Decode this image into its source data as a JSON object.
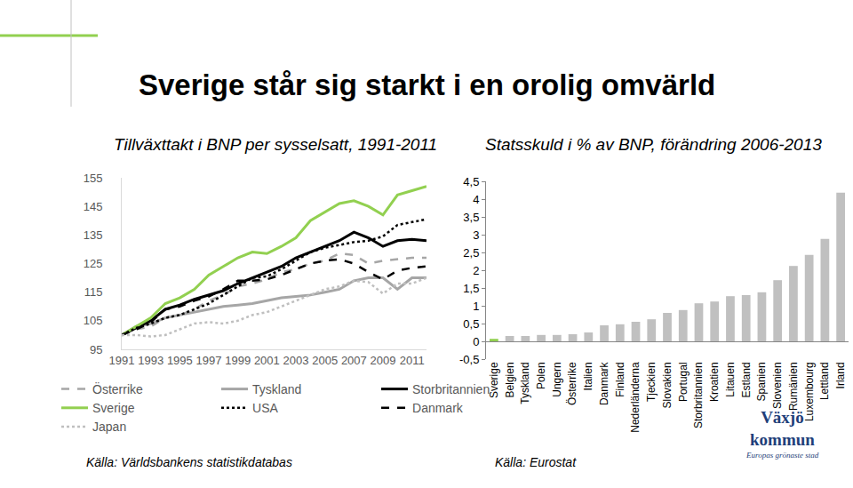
{
  "title": "Sverige står sig starkt i en orolig omvärld",
  "logo": {
    "name": [
      "Växjö",
      "kommun"
    ],
    "tagline": "Europas grönaste stad"
  },
  "chart_data": [
    {
      "type": "line",
      "title": "Tillväxttakt i BNP per sysselsatt, 1991-2011",
      "source": "Källa: Världsbankens statistikdatabas",
      "x": [
        1991,
        1992,
        1993,
        1994,
        1995,
        1996,
        1997,
        1998,
        1999,
        2000,
        2001,
        2002,
        2003,
        2004,
        2005,
        2006,
        2007,
        2008,
        2009,
        2010,
        2011,
        2012
      ],
      "xlim": [
        1991,
        2012
      ],
      "xticks": [
        1991,
        1993,
        1995,
        1997,
        1999,
        2001,
        2003,
        2005,
        2007,
        2009,
        2011
      ],
      "ylim": [
        95,
        155
      ],
      "yticks": [
        95,
        105,
        115,
        125,
        135,
        145,
        155
      ],
      "grid": false,
      "legend": "bottom",
      "series": [
        {
          "name": "Österrike",
          "color": "#a6a6a6",
          "line_style": "dash",
          "values": [
            100,
            102,
            103,
            106,
            107,
            109,
            112,
            114,
            117,
            118,
            119.5,
            122,
            123,
            125,
            126,
            128.5,
            128,
            125,
            126,
            126.5,
            127,
            127
          ]
        },
        {
          "name": "Tyskland",
          "color": "#a6a6a6",
          "line_style": "solid",
          "values": [
            100,
            103,
            104,
            106,
            107,
            108,
            109,
            110,
            110.5,
            111,
            112,
            113,
            113.5,
            114,
            115,
            116,
            119,
            120,
            120,
            116,
            120,
            120
          ]
        },
        {
          "name": "Storbritannien",
          "color": "#000000",
          "line_style": "solid",
          "values": [
            100,
            102.5,
            105,
            109,
            110.5,
            112.5,
            114,
            115.5,
            118,
            120,
            122,
            124,
            127,
            129,
            131,
            133,
            136,
            134,
            131,
            133,
            133.5,
            133
          ]
        },
        {
          "name": "Sverige",
          "color": "#92d050",
          "line_style": "solid",
          "values": [
            100,
            103,
            106,
            111,
            113,
            116,
            121,
            124,
            127,
            129,
            128.5,
            131,
            134,
            140,
            143,
            146,
            147,
            145,
            142,
            149,
            150.5,
            152
          ]
        },
        {
          "name": "USA",
          "color": "#000000",
          "line_style": "dot",
          "values": [
            100,
            102.5,
            104,
            106,
            107,
            109,
            111,
            114,
            117,
            120,
            120.5,
            123,
            126,
            129,
            130.5,
            131.5,
            132.5,
            133,
            134.5,
            138.5,
            139.5,
            140.5
          ]
        },
        {
          "name": "Danmark",
          "color": "#000000",
          "line_style": "dash",
          "values": [
            100,
            102,
            104.5,
            109,
            110,
            112,
            113.5,
            116,
            119,
            119,
            119.5,
            121,
            123,
            125,
            126,
            126.5,
            125,
            122,
            119.5,
            122.5,
            123.5,
            124
          ]
        },
        {
          "name": "Japan",
          "color": "#bfbfbf",
          "line_style": "dot",
          "values": [
            100,
            100,
            99.5,
            100,
            102,
            104,
            104.5,
            104,
            105,
            107,
            108,
            110,
            112,
            114,
            116,
            117,
            119,
            118.5,
            114.5,
            118,
            118,
            120
          ]
        }
      ]
    },
    {
      "type": "bar",
      "title": "Statsskuld i % av BNP, förändring 2006-2013",
      "source": "Källa: Eurostat",
      "categories": [
        "Sverige",
        "Belgien",
        "Tyskland",
        "Polen",
        "Ungern",
        "Österrike",
        "Italien",
        "Danmark",
        "Finland",
        "Nederländerna",
        "Tjeckien",
        "Slovakien",
        "Portugal",
        "Storbritannien",
        "Kroatien",
        "Litauen",
        "Estland",
        "Spanien",
        "Slovenien",
        "Rumänien",
        "Luxembourg",
        "Lettland",
        "Irland"
      ],
      "values": [
        0.07,
        0.15,
        0.15,
        0.18,
        0.18,
        0.2,
        0.25,
        0.45,
        0.48,
        0.55,
        0.62,
        0.8,
        0.88,
        1.07,
        1.12,
        1.27,
        1.3,
        1.38,
        1.72,
        2.12,
        2.43,
        2.88,
        4.18
      ],
      "colors": [
        "#92d050",
        "#c0c0c0",
        "#c0c0c0",
        "#c0c0c0",
        "#c0c0c0",
        "#c0c0c0",
        "#c0c0c0",
        "#c0c0c0",
        "#c0c0c0",
        "#c0c0c0",
        "#c0c0c0",
        "#c0c0c0",
        "#c0c0c0",
        "#c0c0c0",
        "#c0c0c0",
        "#c0c0c0",
        "#c0c0c0",
        "#c0c0c0",
        "#c0c0c0",
        "#c0c0c0",
        "#c0c0c0",
        "#c0c0c0",
        "#c0c0c0"
      ],
      "ylim": [
        -0.5,
        4.5
      ],
      "yticks": [
        {
          "value": -0.5,
          "label": "-0,5"
        },
        0,
        {
          "value": 0.5,
          "label": "0,5"
        },
        1,
        {
          "value": 1.5,
          "label": "1,5"
        },
        2,
        {
          "value": 2.5,
          "label": "2,5"
        },
        3,
        {
          "value": 3.5,
          "label": "3,5"
        },
        4,
        {
          "value": 4.5,
          "label": "4,5"
        }
      ],
      "grid": false
    }
  ]
}
